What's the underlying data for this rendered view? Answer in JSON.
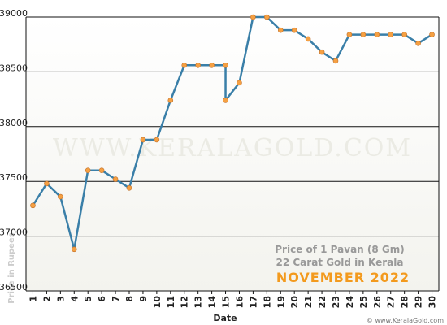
{
  "chart_data": {
    "type": "line",
    "x": [
      1,
      2,
      3,
      4,
      5,
      6,
      7,
      8,
      9,
      10,
      11,
      12,
      13,
      14,
      15,
      15,
      16,
      17,
      18,
      19,
      20,
      21,
      22,
      23,
      24,
      25,
      26,
      27,
      28,
      29,
      30
    ],
    "series": [
      {
        "color": "#3a7fa8",
        "marker_color": "#f5a043",
        "values": [
          37280,
          37480,
          37360,
          36880,
          37600,
          37600,
          37520,
          37440,
          37880,
          37880,
          38240,
          38560,
          38560,
          38560,
          38560,
          38240,
          38400,
          39000,
          39000,
          38880,
          38880,
          38800,
          38680,
          38600,
          38840,
          38840,
          38840,
          38840,
          38840,
          38760,
          38840
        ]
      }
    ],
    "xlim": [
      0.5,
      30.5
    ],
    "xticks": [
      1,
      2,
      3,
      4,
      5,
      6,
      7,
      8,
      9,
      10,
      11,
      12,
      13,
      14,
      15,
      16,
      17,
      18,
      19,
      20,
      21,
      22,
      23,
      24,
      25,
      26,
      27,
      28,
      29,
      30
    ],
    "ylim": [
      36500,
      39000
    ],
    "yticks": [
      36500,
      37000,
      37500,
      38000,
      38500,
      39000
    ],
    "grid": true,
    "xlabel": "Date",
    "ylabel": "Price in Rupees",
    "annotations": [
      "Price of 1 Pavan (8 Gm)",
      "22 Carat Gold in Kerala",
      "NOVEMBER 2022"
    ],
    "watermark": "WWW.KERALAGOLD.COM",
    "footer": "© www.KeralaGold.com"
  }
}
